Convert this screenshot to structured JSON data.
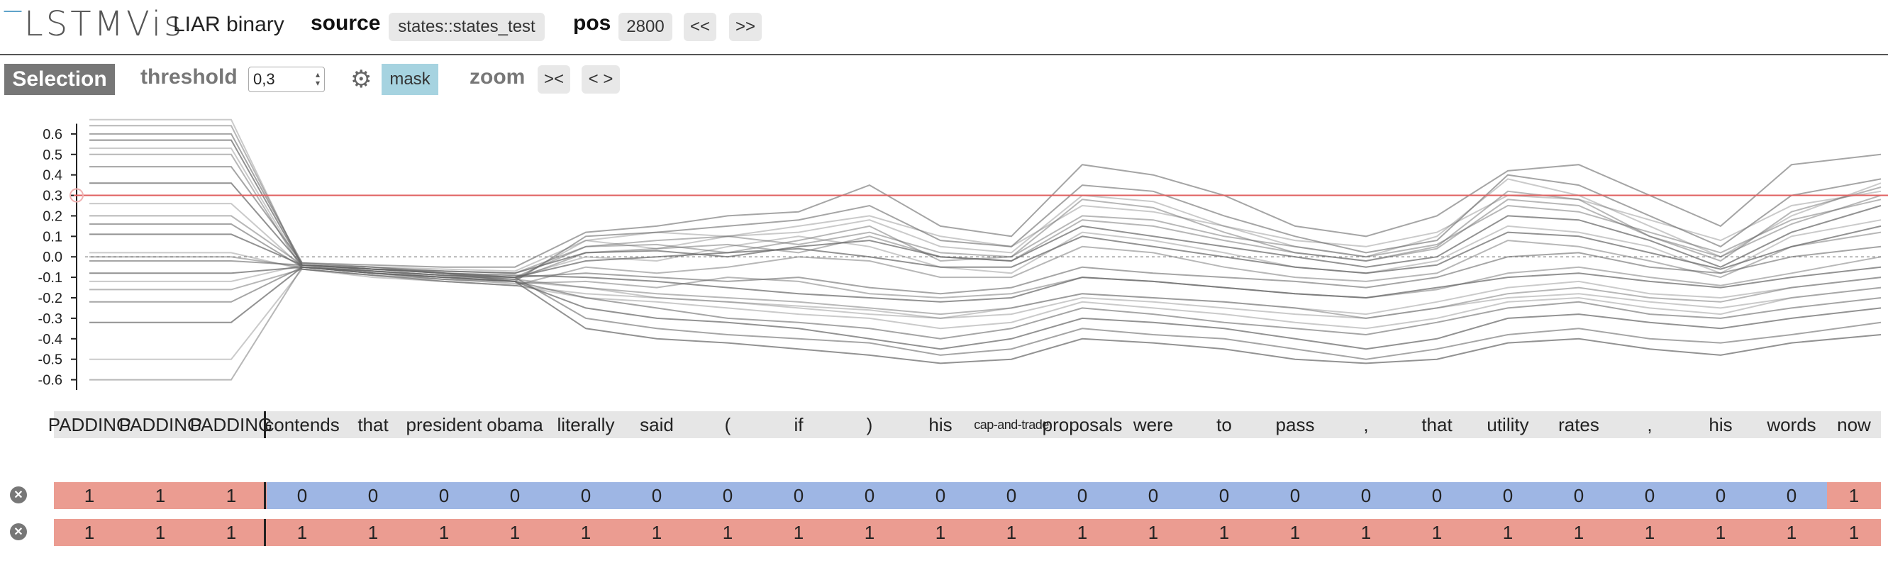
{
  "app": {
    "logo": "LSTMVis",
    "model": "LIAR binary"
  },
  "header": {
    "source_label": "source",
    "source_value": "states::states_test",
    "pos_label": "pos",
    "pos_value": "2800",
    "prev_label": "<<",
    "next_label": ">>"
  },
  "toolbar": {
    "selection_label": "Selection",
    "threshold_label": "threshold",
    "threshold_value": "0,3",
    "mask_label": "mask",
    "zoom_label": "zoom",
    "zoom_in_label": "><",
    "zoom_out_label": "< >",
    "icons": [
      "gear-icon",
      "spinner-arrows-icon",
      "close-icon"
    ]
  },
  "chart_data": {
    "type": "line",
    "ylim": [
      -0.65,
      0.7
    ],
    "y_ticks": [
      "0.6",
      "0.5",
      "0.4",
      "0.3",
      "0.2",
      "0.1",
      "0.0",
      "-0.1",
      "-0.2",
      "-0.3",
      "-0.4",
      "-0.5",
      "-0.6"
    ],
    "y_tick_values": [
      0.6,
      0.5,
      0.4,
      0.3,
      0.2,
      0.1,
      0.0,
      -0.1,
      -0.2,
      -0.3,
      -0.4,
      -0.5,
      -0.6
    ],
    "threshold": 0.3,
    "threshold_color": "#e06060",
    "x": [
      "PADDING",
      "PADDING",
      "PADDING",
      "contends",
      "that",
      "president",
      "obama",
      "literally",
      "said",
      "(",
      "if",
      ")",
      "his",
      "cap-and-trade",
      "proposals",
      "were",
      "to",
      "pass",
      ",",
      "that",
      "utility",
      "rates",
      ",",
      "his",
      "words",
      "now"
    ],
    "series": [
      {
        "values": [
          0.67,
          0.67,
          0.67,
          -0.05,
          -0.08,
          -0.1,
          -0.11,
          0.08,
          0.04,
          0.1,
          0.12,
          0.18,
          0.05,
          0.02,
          0.3,
          0.27,
          0.15,
          0.05,
          0.0,
          0.1,
          0.38,
          0.3,
          0.15,
          0.0,
          0.2,
          0.36
        ]
      },
      {
        "values": [
          0.64,
          0.64,
          0.64,
          -0.04,
          -0.07,
          -0.09,
          -0.1,
          0.05,
          0.06,
          0.02,
          0.08,
          0.15,
          -0.02,
          0.0,
          0.28,
          0.24,
          0.12,
          0.02,
          -0.02,
          0.05,
          0.32,
          0.28,
          0.1,
          -0.02,
          0.22,
          0.34
        ]
      },
      {
        "values": [
          0.6,
          0.6,
          0.6,
          -0.03,
          -0.05,
          -0.08,
          -0.12,
          0.1,
          0.12,
          0.15,
          0.18,
          0.25,
          0.08,
          0.05,
          0.35,
          0.32,
          0.2,
          0.1,
          0.02,
          0.08,
          0.4,
          0.35,
          0.2,
          0.05,
          0.3,
          0.38
        ]
      },
      {
        "values": [
          0.57,
          0.57,
          0.57,
          -0.04,
          -0.06,
          -0.07,
          -0.08,
          0.02,
          0.03,
          0.0,
          0.05,
          0.08,
          0.0,
          -0.02,
          0.15,
          0.1,
          0.05,
          0.0,
          -0.05,
          0.0,
          0.2,
          0.18,
          0.08,
          -0.05,
          0.12,
          0.25
        ]
      },
      {
        "values": [
          0.53,
          0.53,
          0.53,
          -0.05,
          -0.08,
          -0.1,
          -0.1,
          0.0,
          -0.02,
          0.05,
          0.1,
          0.05,
          -0.05,
          -0.08,
          0.12,
          0.08,
          0.02,
          -0.05,
          -0.08,
          -0.02,
          0.15,
          0.12,
          0.05,
          -0.08,
          0.1,
          0.18
        ]
      },
      {
        "values": [
          0.5,
          0.5,
          0.5,
          -0.06,
          -0.09,
          -0.12,
          -0.14,
          -0.05,
          -0.08,
          -0.05,
          0.0,
          -0.02,
          -0.1,
          -0.1,
          0.05,
          0.02,
          -0.05,
          -0.1,
          -0.12,
          -0.08,
          0.08,
          0.05,
          -0.02,
          -0.1,
          0.05,
          0.12
        ]
      },
      {
        "values": [
          0.44,
          0.44,
          0.44,
          -0.03,
          -0.04,
          -0.05,
          -0.05,
          0.12,
          0.15,
          0.2,
          0.22,
          0.35,
          0.15,
          0.1,
          0.45,
          0.4,
          0.3,
          0.15,
          0.1,
          0.2,
          0.42,
          0.45,
          0.3,
          0.15,
          0.45,
          0.5
        ]
      },
      {
        "values": [
          0.36,
          0.36,
          0.36,
          -0.04,
          -0.06,
          -0.08,
          -0.09,
          -0.1,
          -0.12,
          -0.15,
          -0.18,
          -0.2,
          -0.22,
          -0.2,
          -0.1,
          -0.12,
          -0.15,
          -0.18,
          -0.2,
          -0.15,
          -0.1,
          -0.08,
          -0.12,
          -0.15,
          -0.1,
          -0.05
        ]
      },
      {
        "values": [
          0.26,
          0.26,
          0.26,
          -0.05,
          -0.07,
          -0.1,
          -0.12,
          -0.15,
          -0.2,
          -0.22,
          -0.25,
          -0.28,
          -0.3,
          -0.28,
          -0.2,
          -0.22,
          -0.25,
          -0.28,
          -0.3,
          -0.25,
          -0.2,
          -0.18,
          -0.22,
          -0.25,
          -0.2,
          -0.15
        ]
      },
      {
        "values": [
          0.2,
          0.2,
          0.2,
          -0.04,
          -0.05,
          -0.07,
          -0.08,
          0.05,
          0.08,
          0.1,
          0.06,
          0.12,
          0.02,
          0.0,
          0.2,
          0.18,
          0.1,
          0.05,
          0.0,
          0.06,
          0.25,
          0.22,
          0.12,
          0.02,
          0.18,
          0.28
        ]
      },
      {
        "values": [
          0.16,
          0.16,
          0.16,
          -0.05,
          -0.08,
          -0.11,
          -0.12,
          -0.2,
          -0.25,
          -0.3,
          -0.32,
          -0.35,
          -0.4,
          -0.35,
          -0.25,
          -0.28,
          -0.32,
          -0.35,
          -0.38,
          -0.32,
          -0.25,
          -0.22,
          -0.28,
          -0.3,
          -0.25,
          -0.2
        ]
      },
      {
        "values": [
          0.11,
          0.11,
          0.11,
          -0.04,
          -0.06,
          -0.08,
          -0.1,
          -0.02,
          0.0,
          0.02,
          0.04,
          0.0,
          -0.05,
          -0.05,
          0.1,
          0.05,
          0.0,
          -0.05,
          -0.08,
          -0.04,
          0.12,
          0.1,
          0.02,
          -0.06,
          0.05,
          0.15
        ]
      },
      {
        "values": [
          0.02,
          0.02,
          0.02,
          -0.06,
          -0.1,
          -0.12,
          -0.14,
          -0.18,
          -0.2,
          -0.22,
          -0.24,
          -0.26,
          -0.3,
          -0.25,
          -0.18,
          -0.2,
          -0.22,
          -0.25,
          -0.28,
          -0.22,
          -0.15,
          -0.12,
          -0.18,
          -0.2,
          -0.15,
          -0.1
        ]
      },
      {
        "values": [
          0.0,
          0.0,
          0.0,
          -0.05,
          -0.07,
          -0.09,
          -0.11,
          0.02,
          0.04,
          0.06,
          0.02,
          0.1,
          0.0,
          -0.02,
          0.18,
          0.15,
          0.08,
          0.02,
          -0.02,
          0.04,
          0.28,
          0.25,
          0.1,
          0.0,
          0.16,
          0.3
        ]
      },
      {
        "values": [
          -0.02,
          -0.02,
          -0.02,
          -0.04,
          -0.06,
          -0.08,
          -0.1,
          -0.08,
          -0.1,
          -0.12,
          -0.1,
          -0.15,
          -0.18,
          -0.15,
          -0.05,
          -0.08,
          -0.1,
          -0.12,
          -0.15,
          -0.1,
          0.0,
          0.02,
          -0.05,
          -0.08,
          0.0,
          0.05
        ]
      },
      {
        "values": [
          -0.08,
          -0.08,
          -0.08,
          -0.05,
          -0.08,
          -0.1,
          -0.12,
          -0.25,
          -0.3,
          -0.32,
          -0.35,
          -0.4,
          -0.45,
          -0.4,
          -0.3,
          -0.32,
          -0.35,
          -0.4,
          -0.45,
          -0.4,
          -0.3,
          -0.28,
          -0.32,
          -0.35,
          -0.3,
          -0.25
        ]
      },
      {
        "values": [
          -0.12,
          -0.12,
          -0.12,
          -0.04,
          -0.05,
          -0.06,
          -0.07,
          0.08,
          0.12,
          0.1,
          0.15,
          0.2,
          0.1,
          0.05,
          0.25,
          0.22,
          0.15,
          0.08,
          0.05,
          0.12,
          0.3,
          0.28,
          0.18,
          0.08,
          0.25,
          0.32
        ]
      },
      {
        "values": [
          -0.16,
          -0.16,
          -0.16,
          -0.06,
          -0.09,
          -0.11,
          -0.13,
          -0.12,
          -0.15,
          -0.1,
          -0.12,
          -0.18,
          -0.2,
          -0.18,
          -0.1,
          -0.12,
          -0.15,
          -0.18,
          -0.2,
          -0.16,
          -0.08,
          -0.05,
          -0.1,
          -0.14,
          -0.08,
          0.0
        ]
      },
      {
        "values": [
          -0.22,
          -0.22,
          -0.22,
          -0.05,
          -0.07,
          -0.09,
          -0.1,
          -0.3,
          -0.35,
          -0.38,
          -0.4,
          -0.42,
          -0.48,
          -0.45,
          -0.35,
          -0.38,
          -0.4,
          -0.45,
          -0.5,
          -0.45,
          -0.38,
          -0.35,
          -0.4,
          -0.42,
          -0.38,
          -0.32
        ]
      },
      {
        "values": [
          -0.32,
          -0.32,
          -0.32,
          -0.05,
          -0.08,
          -0.1,
          -0.12,
          -0.35,
          -0.4,
          -0.42,
          -0.45,
          -0.48,
          -0.52,
          -0.5,
          -0.4,
          -0.42,
          -0.45,
          -0.5,
          -0.52,
          -0.5,
          -0.42,
          -0.4,
          -0.45,
          -0.48,
          -0.42,
          -0.38
        ]
      },
      {
        "values": [
          -0.5,
          -0.5,
          -0.5,
          -0.06,
          -0.09,
          -0.12,
          -0.14,
          -0.2,
          -0.22,
          -0.25,
          -0.28,
          -0.3,
          -0.35,
          -0.32,
          -0.22,
          -0.25,
          -0.28,
          -0.32,
          -0.35,
          -0.3,
          -0.22,
          -0.2,
          -0.25,
          -0.28,
          -0.2,
          -0.15
        ]
      },
      {
        "values": [
          -0.6,
          -0.6,
          -0.6,
          -0.05,
          -0.07,
          -0.09,
          -0.11,
          -0.15,
          -0.18,
          -0.2,
          -0.22,
          -0.25,
          -0.28,
          -0.25,
          -0.18,
          -0.2,
          -0.22,
          -0.25,
          -0.3,
          -0.25,
          -0.18,
          -0.15,
          -0.2,
          -0.22,
          -0.15,
          -0.1
        ]
      }
    ]
  },
  "metadata_rows": [
    {
      "values": [
        "1",
        "1",
        "1",
        "0",
        "0",
        "0",
        "0",
        "0",
        "0",
        "0",
        "0",
        "0",
        "0",
        "0",
        "0",
        "0",
        "0",
        "0",
        "0",
        "0",
        "0",
        "0",
        "0",
        "0",
        "0",
        "1"
      ]
    },
    {
      "values": [
        "1",
        "1",
        "1",
        "1",
        "1",
        "1",
        "1",
        "1",
        "1",
        "1",
        "1",
        "1",
        "1",
        "1",
        "1",
        "1",
        "1",
        "1",
        "1",
        "1",
        "1",
        "1",
        "1",
        "1",
        "1",
        "1"
      ]
    }
  ],
  "colors": {
    "label_one": "#eb9c91",
    "label_zero": "#9eb6e4",
    "mask": "#a6d3e0",
    "selection": "#777777"
  }
}
